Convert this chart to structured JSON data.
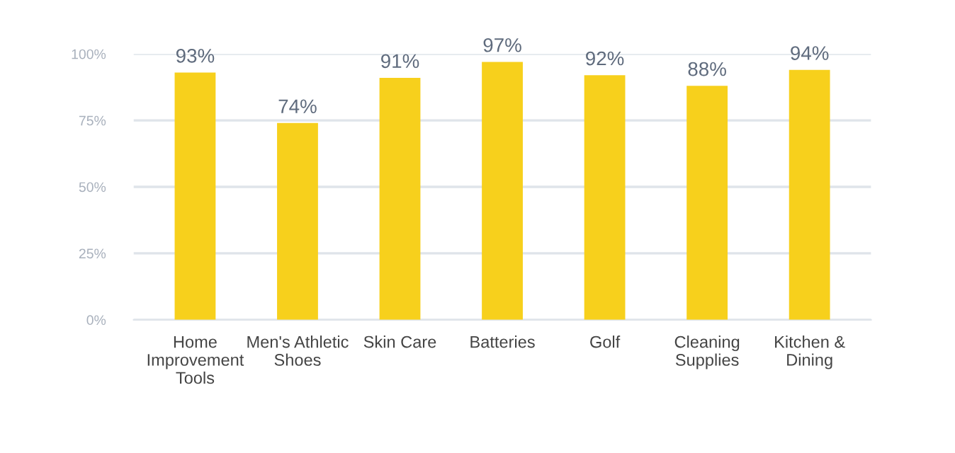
{
  "chart_data": {
    "type": "bar",
    "categories": [
      "Home Improvement Tools",
      "Men's Athletic Shoes",
      "Skin Care",
      "Batteries",
      "Golf",
      "Cleaning Supplies",
      "Kitchen & Dining"
    ],
    "values": [
      93,
      74,
      91,
      97,
      92,
      88,
      94
    ],
    "value_labels": [
      "93%",
      "74%",
      "91%",
      "97%",
      "92%",
      "88%",
      "94%"
    ],
    "color": "#f7d01c",
    "ylim": [
      0,
      100
    ],
    "yticks": [
      {
        "value": 0,
        "label": "0%"
      },
      {
        "value": 25,
        "label": "25%"
      },
      {
        "value": 50,
        "label": "50%"
      },
      {
        "value": 75,
        "label": "75%"
      },
      {
        "value": 100,
        "label": "100%"
      }
    ],
    "grid": "y"
  }
}
